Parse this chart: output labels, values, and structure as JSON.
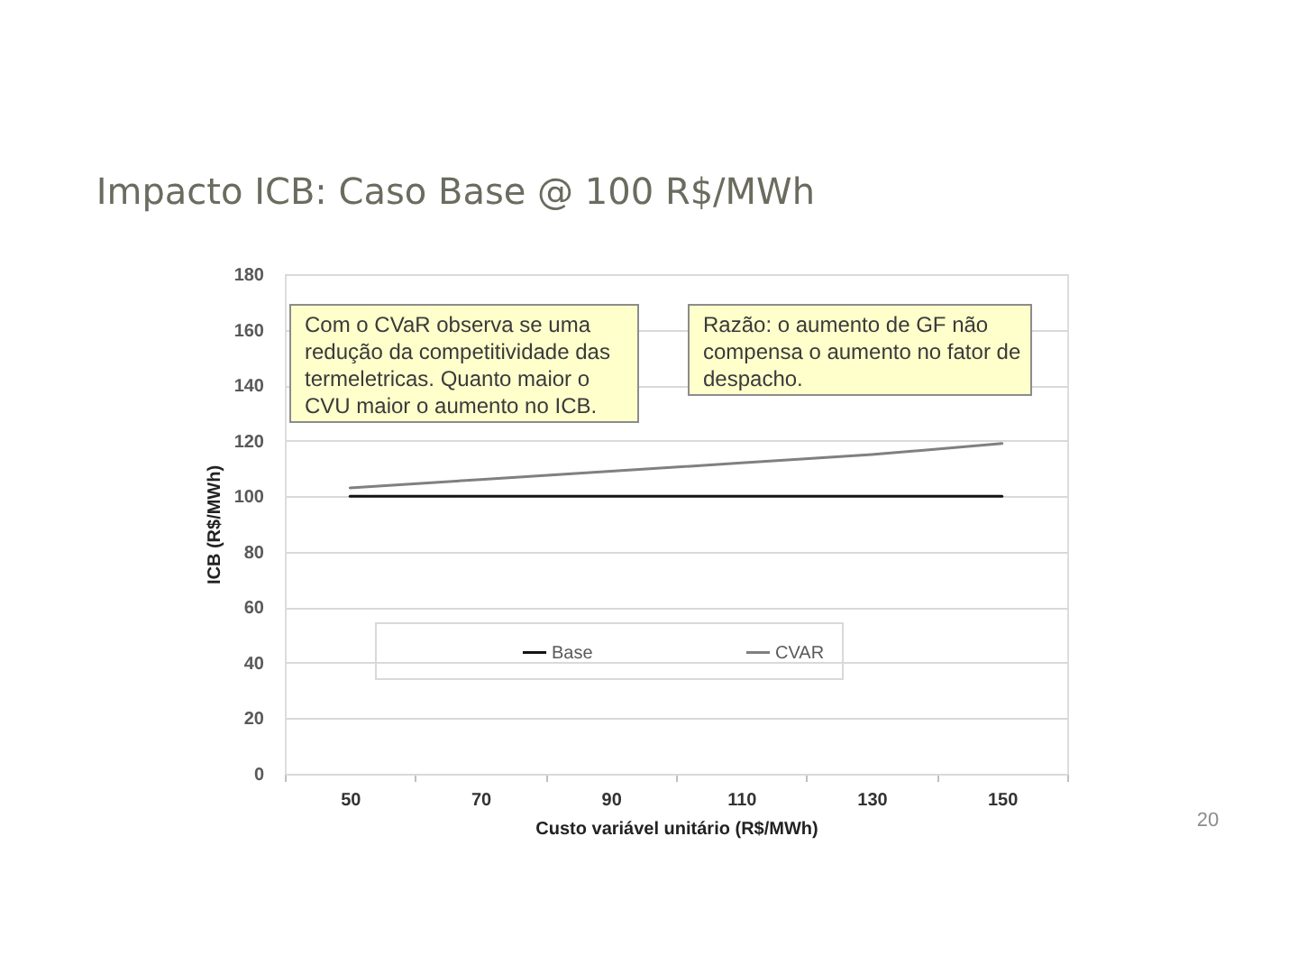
{
  "chart_data": {
    "type": "line",
    "title": "Impacto ICB: Caso Base @ 100 R$/MWh",
    "xlabel": "Custo variável unitário (R$/MWh)",
    "ylabel": "ICB (R$/MWh)",
    "categories": [
      "50",
      "70",
      "90",
      "110",
      "130",
      "150"
    ],
    "series": [
      {
        "name": "Base",
        "color": "#141414",
        "values": [
          100,
          100,
          100,
          100,
          100,
          100
        ]
      },
      {
        "name": "CVAR",
        "color": "#808080",
        "values": [
          103,
          106,
          109,
          112,
          115,
          119
        ]
      }
    ],
    "ylim": [
      0,
      180
    ],
    "yticks": [
      0,
      20,
      40,
      60,
      80,
      100,
      120,
      140,
      160,
      180
    ],
    "grid": "y",
    "legend": "bottom",
    "annotations": [
      "Com o CVaR observa se uma redução da competitividade das termeletricas. Quanto maior o CVU maior o aumento no ICB.",
      "Razão: o aumento de GF não compensa o aumento no fator de despacho.",
      "20"
    ]
  }
}
